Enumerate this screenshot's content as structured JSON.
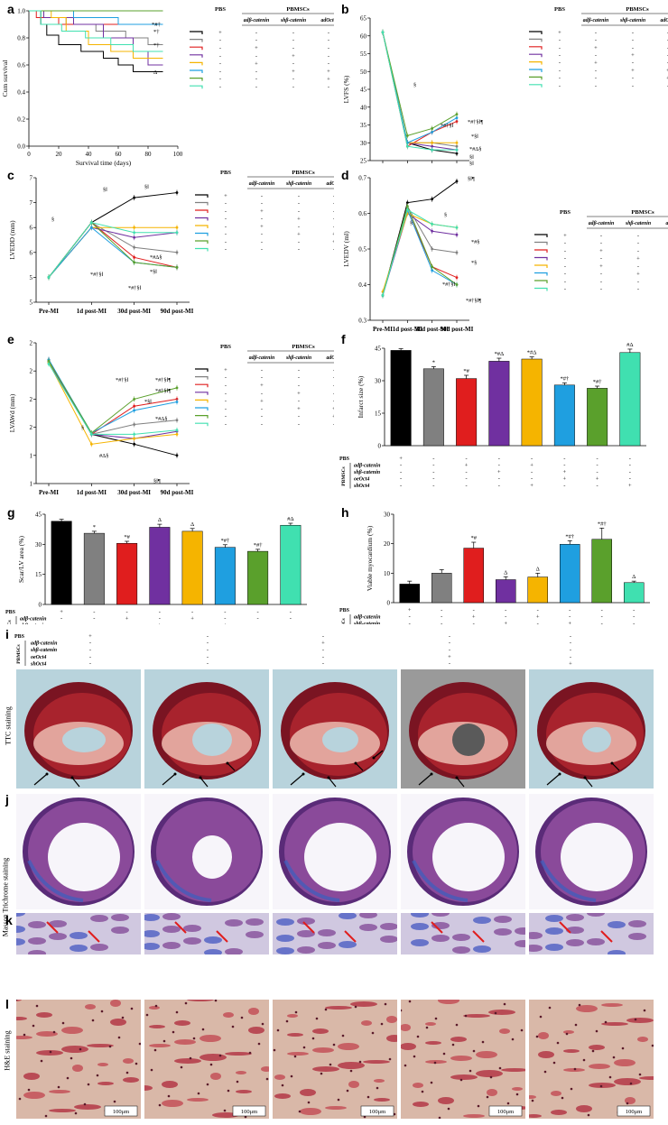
{
  "panels": {
    "a": "a",
    "b": "b",
    "c": "c",
    "d": "d",
    "e": "e",
    "f": "f",
    "g": "g",
    "h": "h",
    "i": "i",
    "j": "j",
    "k": "k",
    "l": "l"
  },
  "groups": [
    "PBS",
    "PBMSCs",
    "adβ-catenin",
    "shβ-catenin",
    "adOct4",
    "shOct4"
  ],
  "groups_oe": "oeOct4",
  "colors": [
    "#000000",
    "#808080",
    "#e01e1e",
    "#7030a0",
    "#f5b400",
    "#1f9fe0",
    "#5aa02c",
    "#40e0b0"
  ],
  "legend_table": [
    [
      "+",
      "-",
      "-",
      "-",
      "-"
    ],
    [
      "-",
      "-",
      "-",
      "-",
      "-"
    ],
    [
      "-",
      "+",
      "-",
      "-",
      "-"
    ],
    [
      "-",
      "-",
      "+",
      "-",
      "-"
    ],
    [
      "-",
      "+",
      "-",
      "-",
      "+"
    ],
    [
      "-",
      "-",
      "+",
      "+",
      "-"
    ],
    [
      "-",
      "-",
      "-",
      "+",
      "-"
    ],
    [
      "-",
      "-",
      "-",
      "-",
      "+"
    ]
  ],
  "bar_table": [
    [
      "+",
      "-",
      "-",
      "-",
      "-",
      "-",
      "-",
      "-"
    ],
    [
      "-",
      "-",
      "+",
      "-",
      "+",
      "-",
      "-",
      "-"
    ],
    [
      "-",
      "-",
      "-",
      "+",
      "-",
      "+",
      "-",
      "-"
    ],
    [
      "-",
      "-",
      "-",
      "-",
      "-",
      "+",
      "+",
      "-"
    ],
    [
      "-",
      "-",
      "-",
      "-",
      "+",
      "-",
      "-",
      "+"
    ]
  ],
  "row_labels": [
    "PBS",
    "adβ-catenin",
    "shβ-catenin",
    "oeOct4",
    "shOct4"
  ],
  "bar_side_label": "PBMSCs",
  "timepoints": [
    "Pre-MI",
    "1d post-MI",
    "30d post-MI",
    "90d post-MI"
  ],
  "chart_data": [
    {
      "id": "a",
      "type": "line",
      "step": true,
      "xlabel": "Survival time (days)",
      "ylabel": "Cum survival",
      "xlim": [
        0,
        100
      ],
      "ylim": [
        0,
        1.0
      ],
      "xticks": [
        0,
        20,
        40,
        60,
        80,
        100
      ],
      "yticks": [
        0.0,
        0.2,
        0.4,
        0.6,
        0.8,
        1.0
      ],
      "series": [
        {
          "values": [
            [
              0,
              1
            ],
            [
              8,
              0.9
            ],
            [
              12,
              0.82
            ],
            [
              20,
              0.75
            ],
            [
              35,
              0.7
            ],
            [
              50,
              0.65
            ],
            [
              60,
              0.6
            ],
            [
              70,
              0.55
            ],
            [
              90,
              0.55
            ]
          ]
        },
        {
          "values": [
            [
              0,
              1
            ],
            [
              10,
              0.95
            ],
            [
              25,
              0.9
            ],
            [
              45,
              0.85
            ],
            [
              65,
              0.8
            ],
            [
              80,
              0.75
            ],
            [
              90,
              0.75
            ]
          ]
        },
        {
          "values": [
            [
              0,
              1
            ],
            [
              5,
              0.95
            ],
            [
              20,
              0.9
            ],
            [
              90,
              0.9
            ]
          ]
        },
        {
          "values": [
            [
              0,
              1
            ],
            [
              10,
              0.95
            ],
            [
              30,
              0.9
            ],
            [
              50,
              0.8
            ],
            [
              70,
              0.7
            ],
            [
              80,
              0.6
            ],
            [
              90,
              0.6
            ]
          ]
        },
        {
          "values": [
            [
              0,
              1
            ],
            [
              15,
              0.95
            ],
            [
              25,
              0.85
            ],
            [
              40,
              0.75
            ],
            [
              55,
              0.7
            ],
            [
              70,
              0.65
            ],
            [
              90,
              0.65
            ]
          ]
        },
        {
          "values": [
            [
              0,
              1
            ],
            [
              30,
              0.95
            ],
            [
              60,
              0.9
            ],
            [
              90,
              0.9
            ]
          ]
        },
        {
          "values": [
            [
              0,
              1
            ],
            [
              90,
              1
            ]
          ]
        },
        {
          "values": [
            [
              0,
              1
            ],
            [
              8,
              0.9
            ],
            [
              22,
              0.85
            ],
            [
              38,
              0.8
            ],
            [
              55,
              0.75
            ],
            [
              70,
              0.7
            ],
            [
              90,
              0.7
            ]
          ]
        }
      ],
      "annotations": [
        "*#†",
        "*†",
        "*†",
        "Δ"
      ]
    },
    {
      "id": "b",
      "type": "line",
      "ylabel": "LVFS (%)",
      "ylim": [
        25,
        65
      ],
      "yticks": [
        25,
        30,
        35,
        40,
        45,
        50,
        55,
        60,
        65
      ],
      "series": [
        {
          "values": [
            61,
            30,
            28,
            27
          ]
        },
        {
          "values": [
            61,
            30,
            30,
            29
          ]
        },
        {
          "values": [
            61,
            29,
            33,
            36
          ]
        },
        {
          "values": [
            61,
            30,
            29,
            28
          ]
        },
        {
          "values": [
            61,
            30,
            30,
            30
          ]
        },
        {
          "values": [
            61,
            30,
            33,
            37
          ]
        },
        {
          "values": [
            61,
            32,
            34,
            38
          ]
        },
        {
          "values": [
            61,
            29,
            28,
            28
          ]
        }
      ],
      "annotations": [
        "§",
        "*#†§‖",
        "*#†§‖¶",
        "*§‖",
        "*#Δ§",
        "§‖",
        "§‖"
      ]
    },
    {
      "id": "c",
      "type": "line",
      "ylabel": "LVEDD (mm)",
      "ylim": [
        4.5,
        7.0
      ],
      "yticks": [
        4.5,
        5.0,
        5.5,
        6.0,
        6.5,
        7.0
      ],
      "series": [
        {
          "values": [
            5.0,
            6.1,
            6.6,
            6.7
          ]
        },
        {
          "values": [
            5.0,
            6.1,
            5.6,
            5.5
          ]
        },
        {
          "values": [
            5.0,
            6.1,
            5.4,
            5.2
          ]
        },
        {
          "values": [
            5.0,
            6.0,
            5.8,
            5.9
          ]
        },
        {
          "values": [
            5.0,
            6.0,
            6.0,
            6.0
          ]
        },
        {
          "values": [
            5.0,
            6.0,
            5.3,
            5.2
          ]
        },
        {
          "values": [
            5.0,
            6.1,
            5.3,
            5.2
          ]
        },
        {
          "values": [
            5.0,
            6.1,
            5.9,
            5.9
          ]
        }
      ],
      "annotations": [
        "§",
        "§‖",
        "§‖",
        "*#Δ§",
        "*§‖",
        "*#†§‖",
        "*#†§‖"
      ]
    },
    {
      "id": "d",
      "type": "line",
      "ylabel": "LVEDV (ml)",
      "ylim": [
        0.3,
        0.7
      ],
      "yticks": [
        0.3,
        0.4,
        0.5,
        0.6,
        0.7
      ],
      "series": [
        {
          "values": [
            0.37,
            0.63,
            0.64,
            0.69
          ]
        },
        {
          "values": [
            0.37,
            0.62,
            0.5,
            0.49
          ]
        },
        {
          "values": [
            0.37,
            0.61,
            0.45,
            0.42
          ]
        },
        {
          "values": [
            0.37,
            0.6,
            0.55,
            0.54
          ]
        },
        {
          "values": [
            0.38,
            0.6,
            0.57,
            0.56
          ]
        },
        {
          "values": [
            0.37,
            0.61,
            0.44,
            0.4
          ]
        },
        {
          "values": [
            0.37,
            0.62,
            0.45,
            0.4
          ]
        },
        {
          "values": [
            0.37,
            0.61,
            0.57,
            0.56
          ]
        }
      ],
      "annotations": [
        "§",
        "§",
        "§‖¶",
        "*#§",
        "*§",
        "*#†§‖",
        "*#†§‖¶"
      ]
    },
    {
      "id": "e",
      "type": "line",
      "ylabel": "LVAWd (mm)",
      "ylim": [
        1.2,
        2.2
      ],
      "yticks": [
        1.2,
        1.4,
        1.6,
        1.8,
        2.0,
        2.2
      ],
      "series": [
        {
          "values": [
            2.08,
            1.55,
            1.48,
            1.4
          ]
        },
        {
          "values": [
            2.07,
            1.55,
            1.62,
            1.65
          ]
        },
        {
          "values": [
            2.07,
            1.55,
            1.75,
            1.8
          ]
        },
        {
          "values": [
            2.06,
            1.55,
            1.52,
            1.57
          ]
        },
        {
          "values": [
            2.06,
            1.48,
            1.52,
            1.55
          ]
        },
        {
          "values": [
            2.08,
            1.56,
            1.72,
            1.78
          ]
        },
        {
          "values": [
            2.07,
            1.56,
            1.8,
            1.88
          ]
        },
        {
          "values": [
            2.05,
            1.55,
            1.55,
            1.58
          ]
        }
      ],
      "annotations": [
        "§",
        "*#†§‖",
        "*#†§‖¶",
        "*#†§‖¶",
        "*§‖",
        "*#Δ§",
        "#Δ§",
        "§‖¶"
      ]
    },
    {
      "id": "f",
      "type": "bar",
      "ylabel": "Infarct size (%)",
      "ylim": [
        0,
        45
      ],
      "yticks": [
        0,
        15,
        30,
        45
      ],
      "values": [
        44,
        35.5,
        31,
        39,
        40,
        28,
        26.5,
        43
      ],
      "errors": [
        0.8,
        1.0,
        1.5,
        1.4,
        1.0,
        1.0,
        1.0,
        1.6
      ],
      "labels": [
        "",
        "*",
        "*#",
        "*#Δ",
        "*#Δ",
        "*#†",
        "*#†",
        "#Δ"
      ]
    },
    {
      "id": "g",
      "type": "bar",
      "ylabel": "Scar/LV area (%)",
      "ylim": [
        0,
        45
      ],
      "yticks": [
        0,
        15,
        30,
        45
      ],
      "values": [
        41.5,
        35.5,
        30.5,
        38.5,
        36.5,
        28.5,
        26.5,
        39.5
      ],
      "errors": [
        1.0,
        1.0,
        1.0,
        1.5,
        1.4,
        1.3,
        1.0,
        1.0
      ],
      "labels": [
        "",
        "*",
        "*#",
        "Δ",
        "Δ",
        "*#†",
        "*#†",
        "#Δ"
      ]
    },
    {
      "id": "h",
      "type": "bar",
      "ylabel": "Viable myocardium (%)",
      "ylim": [
        0,
        30
      ],
      "yticks": [
        0,
        10,
        20,
        30
      ],
      "values": [
        6.3,
        10.0,
        18.5,
        7.8,
        8.7,
        19.8,
        21.5,
        6.8
      ],
      "errors": [
        1.0,
        1.2,
        2.0,
        1.0,
        1.3,
        1.2,
        3.8,
        0.5
      ],
      "labels": [
        "",
        "",
        "*#",
        "Δ",
        "Δ",
        "*#†",
        "*#†",
        "Δ"
      ]
    }
  ],
  "image_rows": {
    "i_side": "TTC staining",
    "j_side": "Masson Trichrome staining",
    "l_side": "H&E staining",
    "scale": "100μm",
    "i_table": [
      [
        "+",
        "-",
        "-",
        "-",
        "-"
      ],
      [
        "-",
        "-",
        "+",
        "-",
        "-"
      ],
      [
        "-",
        "-",
        "-",
        "-",
        "-"
      ],
      [
        "-",
        "-",
        "-",
        "+",
        "-"
      ],
      [
        "-",
        "-",
        "-",
        "-",
        "+"
      ]
    ]
  }
}
